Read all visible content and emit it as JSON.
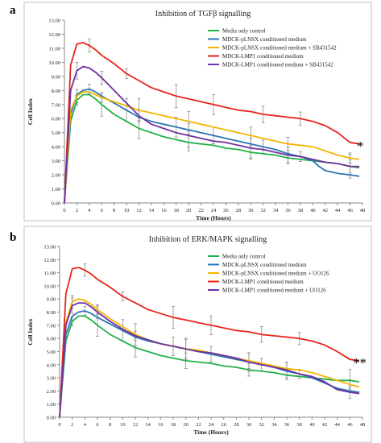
{
  "chart_data": [
    {
      "panel_label": "a",
      "type": "line",
      "title": "Inhibition of TGFβ signalling",
      "xlabel": "Time (Hours)",
      "ylabel": "Cell Index",
      "xlim": [
        0,
        48
      ],
      "ylim": [
        0,
        13
      ],
      "x_ticks": [
        "0",
        "2",
        "4",
        "6",
        "8",
        "10",
        "12",
        "14",
        "16",
        "18",
        "20",
        "22",
        "24",
        "26",
        "28",
        "30",
        "32",
        "34",
        "36",
        "38",
        "40",
        "42",
        "44",
        "46",
        "48"
      ],
      "y_ticks": [
        "0.00",
        "1.00",
        "2.00",
        "3.00",
        "4.00",
        "5.00",
        "6.00",
        "7.00",
        "8.00",
        "9.00",
        "10.00",
        "11.00",
        "12.00",
        "13.00"
      ],
      "grid": false,
      "legend_position": "top-right",
      "annotation": "*",
      "series": [
        {
          "name": "Media only control",
          "color": "#22b04a",
          "x": [
            0,
            1,
            2,
            3,
            4,
            5,
            6,
            8,
            10,
            12,
            14,
            16,
            18,
            20,
            22,
            24,
            26,
            28,
            30,
            32,
            34,
            36,
            38,
            40,
            42,
            44,
            46,
            47.5
          ],
          "y": [
            0,
            5.8,
            7.3,
            7.7,
            7.7,
            7.4,
            7.0,
            6.3,
            5.8,
            5.3,
            5.0,
            4.7,
            4.5,
            4.3,
            4.2,
            4.1,
            3.9,
            3.8,
            3.6,
            3.5,
            3.4,
            3.2,
            3.1,
            3.0,
            2.9,
            2.8,
            2.6,
            2.5
          ]
        },
        {
          "name": "MDCK-pLNSX conditioned medium",
          "color": "#2e75b6",
          "x": [
            0,
            1,
            2,
            3,
            4,
            5,
            6,
            8,
            10,
            12,
            14,
            16,
            18,
            20,
            22,
            24,
            26,
            28,
            30,
            32,
            34,
            36,
            38,
            40,
            41,
            42,
            44,
            46,
            47.5
          ],
          "y": [
            0,
            6.3,
            7.7,
            8.0,
            8.1,
            7.9,
            7.6,
            7.1,
            6.6,
            6.1,
            5.8,
            5.6,
            5.4,
            5.2,
            5.0,
            4.8,
            4.6,
            4.4,
            4.2,
            4.0,
            3.8,
            3.5,
            3.3,
            3.0,
            2.6,
            2.3,
            2.1,
            2.0,
            1.9
          ]
        },
        {
          "name": "MDCK-pLNSX conditioned medium + SB431542",
          "color": "#f4b400",
          "x": [
            0,
            1,
            2,
            3,
            4,
            5,
            6,
            8,
            10,
            12,
            14,
            16,
            18,
            20,
            22,
            24,
            26,
            28,
            30,
            32,
            34,
            36,
            38,
            40,
            42,
            44,
            46,
            47.5
          ],
          "y": [
            0,
            6.6,
            7.6,
            7.9,
            7.9,
            7.7,
            7.5,
            7.2,
            6.9,
            6.6,
            6.4,
            6.2,
            6.0,
            5.8,
            5.6,
            5.4,
            5.2,
            5.0,
            4.8,
            4.6,
            4.4,
            4.2,
            4.1,
            4.0,
            3.7,
            3.4,
            3.2,
            3.1
          ]
        },
        {
          "name": "MDCK-LMP1 conditioned medium",
          "color": "#e8231a",
          "x": [
            0,
            1,
            2,
            3,
            4,
            5,
            6,
            8,
            10,
            12,
            14,
            16,
            18,
            20,
            22,
            24,
            26,
            28,
            30,
            32,
            34,
            36,
            38,
            40,
            42,
            44,
            46,
            47.5
          ],
          "y": [
            0,
            9.8,
            11.3,
            11.4,
            11.2,
            10.9,
            10.5,
            9.9,
            9.2,
            8.7,
            8.2,
            7.9,
            7.6,
            7.4,
            7.2,
            7.0,
            6.8,
            6.6,
            6.5,
            6.3,
            6.2,
            6.1,
            6.0,
            5.8,
            5.5,
            5.0,
            4.3,
            4.2
          ]
        },
        {
          "name": "MDCK-LMP1 conditioned medium + SB431542",
          "color": "#7030a0",
          "x": [
            0,
            1,
            2,
            3,
            4,
            5,
            6,
            8,
            10,
            12,
            14,
            16,
            18,
            20,
            22,
            24,
            26,
            28,
            30,
            32,
            34,
            36,
            38,
            40,
            42,
            44,
            46,
            47.5
          ],
          "y": [
            0,
            8.0,
            9.4,
            9.7,
            9.6,
            9.3,
            8.9,
            8.0,
            7.1,
            6.2,
            5.6,
            5.3,
            5.0,
            4.8,
            4.6,
            4.4,
            4.3,
            4.1,
            3.9,
            3.8,
            3.6,
            3.4,
            3.3,
            3.1,
            2.9,
            2.8,
            2.6,
            2.6
          ]
        }
      ]
    },
    {
      "panel_label": "b",
      "type": "line",
      "title": "Inhibition of ERK/MAPK signalling",
      "xlabel": "Time (Hours)",
      "ylabel": "Cell Index",
      "xlim": [
        0,
        48
      ],
      "ylim": [
        0,
        13
      ],
      "x_ticks": [
        "0",
        "2",
        "4",
        "6",
        "8",
        "10",
        "12",
        "14",
        "16",
        "18",
        "20",
        "22",
        "24",
        "26",
        "28",
        "30",
        "32",
        "34",
        "36",
        "38",
        "40",
        "42",
        "44",
        "46",
        "48"
      ],
      "y_ticks": [
        "0.00",
        "1.00",
        "2.00",
        "3.00",
        "4.00",
        "5.00",
        "6.00",
        "7.00",
        "8.00",
        "9.00",
        "10.00",
        "11.00",
        "12.00",
        "13.00"
      ],
      "grid": false,
      "legend_position": "top-right",
      "annotation": "**",
      "series": [
        {
          "name": "Media only control",
          "color": "#22b04a",
          "x": [
            0,
            1,
            2,
            3,
            4,
            5,
            6,
            8,
            10,
            12,
            14,
            16,
            18,
            20,
            22,
            24,
            26,
            28,
            30,
            32,
            34,
            36,
            38,
            40,
            42,
            44,
            46,
            47.5
          ],
          "y": [
            0,
            5.8,
            7.3,
            7.7,
            7.7,
            7.4,
            7.0,
            6.3,
            5.8,
            5.3,
            5.0,
            4.7,
            4.5,
            4.3,
            4.2,
            4.1,
            3.9,
            3.8,
            3.6,
            3.5,
            3.4,
            3.2,
            3.1,
            3.0,
            2.9,
            2.8,
            2.8,
            2.7
          ]
        },
        {
          "name": "MDCK-pLNSX conditioned medium",
          "color": "#2e75b6",
          "x": [
            0,
            1,
            2,
            3,
            4,
            5,
            6,
            8,
            10,
            12,
            14,
            16,
            18,
            20,
            22,
            24,
            26,
            28,
            30,
            32,
            34,
            36,
            38,
            40,
            42,
            44,
            46,
            47.5
          ],
          "y": [
            0,
            6.3,
            7.7,
            8.0,
            8.1,
            7.9,
            7.6,
            7.1,
            6.6,
            6.1,
            5.8,
            5.6,
            5.4,
            5.2,
            5.0,
            4.8,
            4.6,
            4.4,
            4.2,
            4.0,
            3.8,
            3.5,
            3.3,
            3.0,
            2.6,
            2.2,
            2.0,
            1.9
          ]
        },
        {
          "name": "MDCK-pLNSX conditioned medium + UO126",
          "color": "#f4b400",
          "x": [
            0,
            1,
            2,
            3,
            4,
            5,
            6,
            8,
            10,
            12,
            14,
            16,
            18,
            20,
            22,
            24,
            26,
            28,
            30,
            32,
            34,
            36,
            38,
            40,
            42,
            44,
            46,
            47.5
          ],
          "y": [
            0,
            7.2,
            8.8,
            9.0,
            8.9,
            8.6,
            8.2,
            7.5,
            6.9,
            6.3,
            5.9,
            5.6,
            5.4,
            5.2,
            5.1,
            4.9,
            4.7,
            4.5,
            4.3,
            4.1,
            3.9,
            3.7,
            3.6,
            3.4,
            3.1,
            2.8,
            2.5,
            2.3
          ]
        },
        {
          "name": "MDCK-LMP1 conditioned medium",
          "color": "#e8231a",
          "x": [
            0,
            1,
            2,
            3,
            4,
            5,
            6,
            8,
            10,
            12,
            14,
            16,
            18,
            20,
            22,
            24,
            26,
            28,
            30,
            32,
            34,
            36,
            38,
            40,
            42,
            44,
            46,
            47.5
          ],
          "y": [
            0,
            9.4,
            11.3,
            11.4,
            11.2,
            10.9,
            10.5,
            9.9,
            9.2,
            8.7,
            8.2,
            7.9,
            7.6,
            7.4,
            7.2,
            7.0,
            6.8,
            6.6,
            6.5,
            6.3,
            6.2,
            6.1,
            6.0,
            5.8,
            5.5,
            5.0,
            4.4,
            4.3
          ]
        },
        {
          "name": "MDCK-LMP1 conditioned medium + UO126",
          "color": "#7030a0",
          "x": [
            0,
            1,
            2,
            3,
            4,
            5,
            6,
            8,
            10,
            12,
            14,
            16,
            18,
            20,
            22,
            24,
            26,
            28,
            30,
            32,
            34,
            36,
            38,
            40,
            42,
            44,
            46,
            47.5
          ],
          "y": [
            0,
            7.0,
            8.5,
            8.7,
            8.7,
            8.4,
            8.0,
            7.3,
            6.7,
            6.2,
            5.9,
            5.6,
            5.4,
            5.2,
            5.0,
            4.9,
            4.7,
            4.5,
            4.2,
            4.0,
            3.8,
            3.6,
            3.3,
            3.1,
            2.7,
            2.1,
            1.9,
            1.8
          ]
        }
      ]
    }
  ]
}
